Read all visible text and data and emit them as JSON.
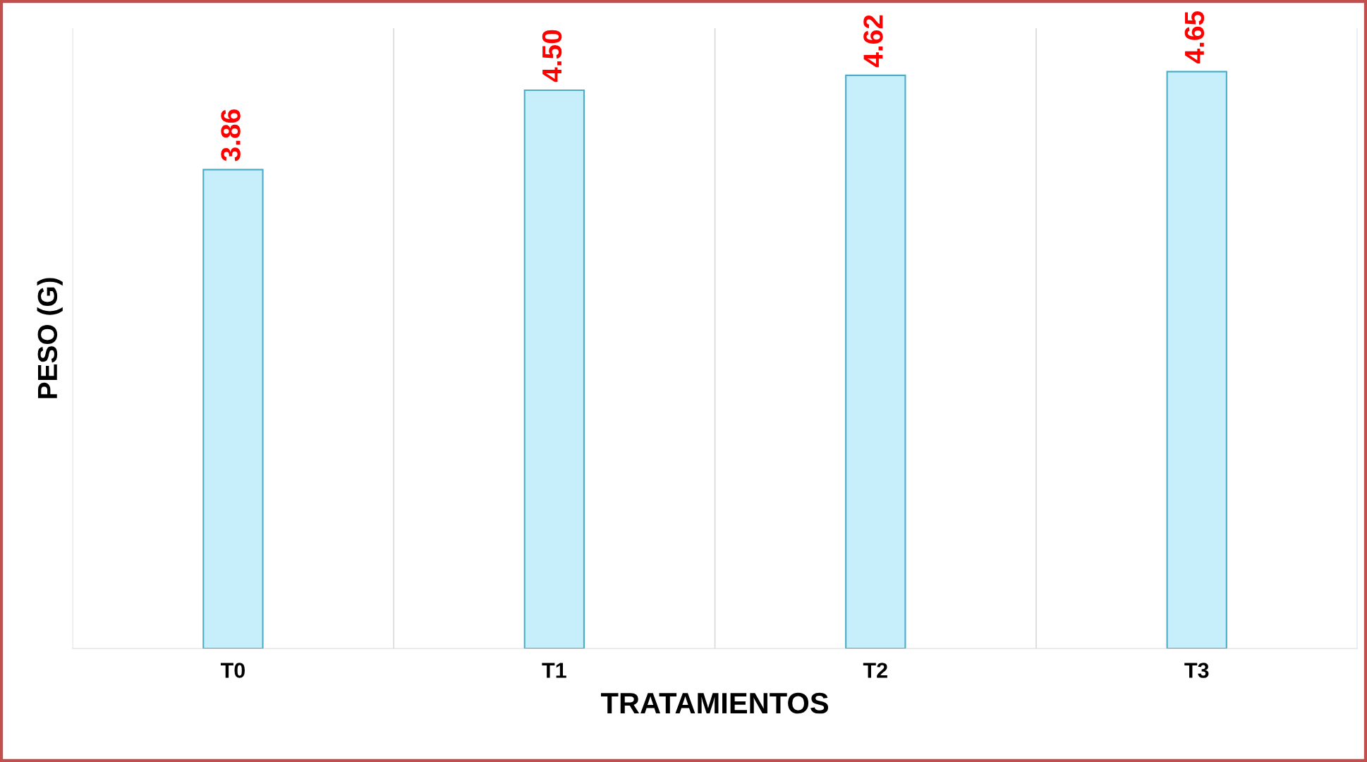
{
  "chart_data": {
    "type": "bar",
    "xlabel": "TRATAMIENTOS",
    "ylabel": "PESO (G)",
    "categories": [
      "T0",
      "T1",
      "T2",
      "T3"
    ],
    "values": [
      3.86,
      4.5,
      4.62,
      4.65
    ],
    "color": "#c6effb",
    "ylim": [
      0,
      5
    ],
    "value_labels": [
      "3.86",
      "4.50",
      "4.62",
      "4.65"
    ],
    "grid": "x",
    "tick_labels": "x"
  }
}
